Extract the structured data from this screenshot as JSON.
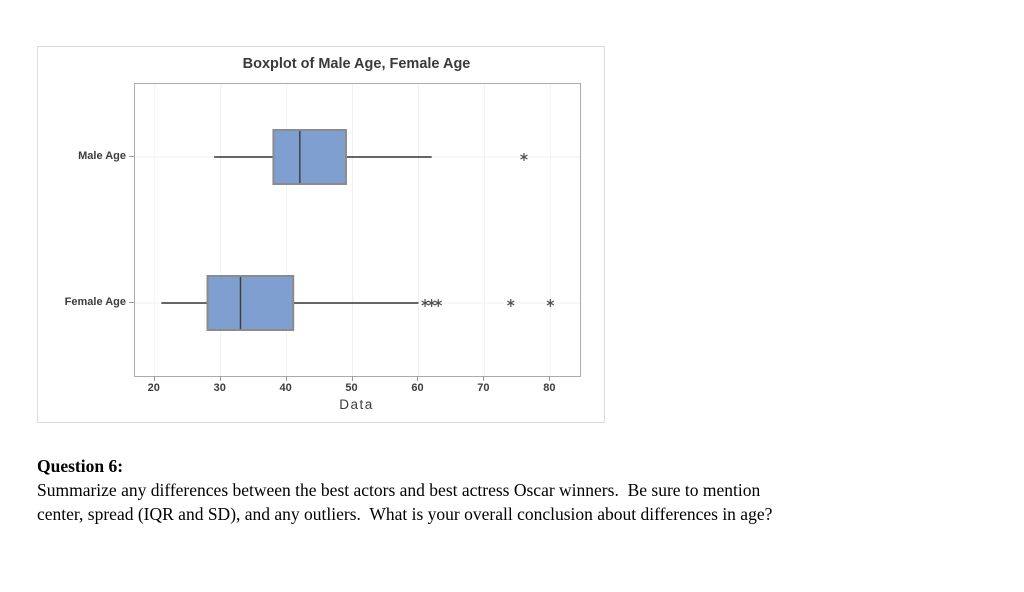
{
  "chart_data": {
    "type": "boxplot",
    "orientation": "horizontal",
    "title": "Boxplot of Male Age, Female Age",
    "xlabel": "Data",
    "categories": [
      "Male Age",
      "Female Age"
    ],
    "series": [
      {
        "name": "Male Age",
        "whisker_low": 29,
        "q1": 38,
        "median": 42,
        "q3": 49,
        "whisker_high": 62,
        "outliers": [
          76
        ]
      },
      {
        "name": "Female Age",
        "whisker_low": 21,
        "q1": 28,
        "median": 33,
        "q3": 41,
        "whisker_high": 60,
        "outliers": [
          61,
          62,
          63,
          74,
          80
        ]
      }
    ],
    "xlim": [
      17,
      84.5
    ],
    "xticks": [
      20,
      30,
      40,
      50,
      60,
      70,
      80
    ],
    "grid": true,
    "legend": false,
    "colors": {
      "box_fill": "#809FD1",
      "box_border": "#8B8B8B",
      "median_line": "#404040",
      "whisker": "#333333",
      "outlier": "#4F4F4F",
      "plot_border": "#ABABAB",
      "grid_line": "#F2F2F2",
      "tick": "#9A9A9A",
      "text": "#3D3D3D"
    }
  },
  "question": {
    "label": "Question 6:",
    "lines": [
      "Summarize any differences between the best actors and best actress Oscar winners.  Be sure to mention",
      "center, spread (IQR and SD), and any outliers.  What is your overall conclusion about differences in age?"
    ]
  }
}
